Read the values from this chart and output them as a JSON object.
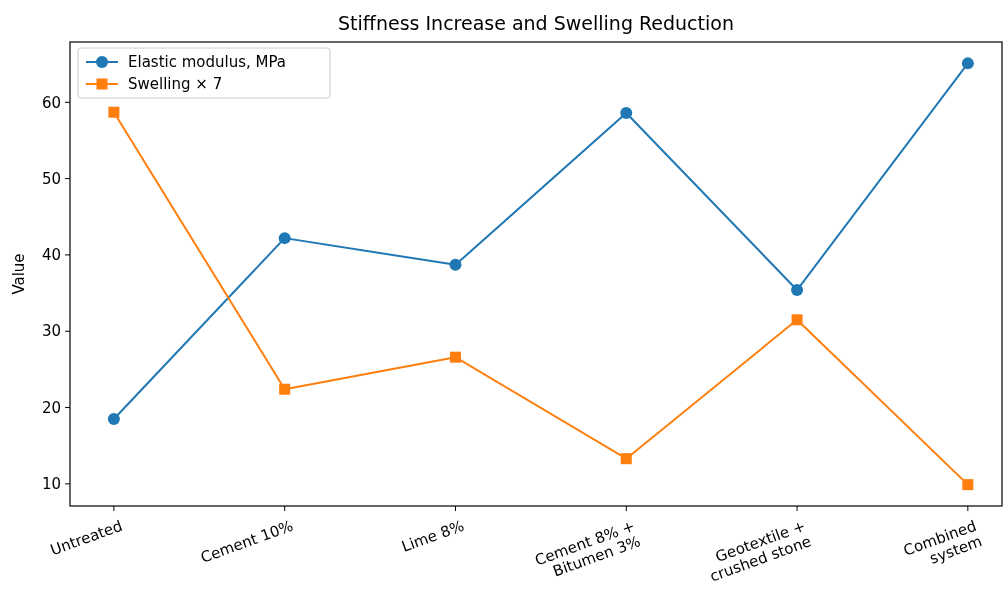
{
  "chart_data": {
    "type": "line",
    "title": "Stiffness Increase and Swelling Reduction",
    "ylabel": "Value",
    "categories": [
      "Untreated",
      "Cement 10%",
      "Lime 8%",
      "Cement 8% +\nBitumen 3%",
      "Geotextile +\ncrushed stone",
      "Combined\nsystem"
    ],
    "series": [
      {
        "name": "Elastic modulus, MPa",
        "color": "#1f77b4",
        "marker": "circle",
        "values": [
          18.5,
          42.2,
          38.7,
          58.6,
          35.4,
          65.1
        ]
      },
      {
        "name": "Swelling × 7",
        "color": "#ff7f0e",
        "marker": "square",
        "values": [
          58.7,
          22.4,
          26.6,
          13.3,
          31.5,
          9.9
        ]
      }
    ],
    "ylim": [
      7.1,
      67.9
    ],
    "yticks": [
      10,
      20,
      30,
      40,
      50,
      60
    ],
    "grid": false,
    "legend": "top left",
    "line_style": "solid"
  }
}
